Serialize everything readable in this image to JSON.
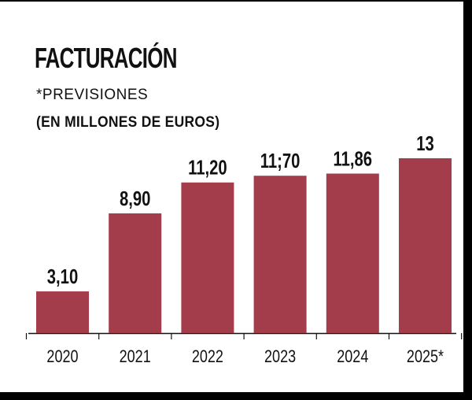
{
  "title": "FACTURACIÓN",
  "note": "*PREVISIONES",
  "unit": "(EN MILLONES DE EUROS)",
  "colors": {
    "bar": "#a33c4b",
    "text": "#111111",
    "background": "#ffffff",
    "frame": "#000000"
  },
  "chart_data": {
    "type": "bar",
    "title": "FACTURACIÓN",
    "subtitle": "(EN MILLONES DE EUROS)",
    "annotation": "*PREVISIONES",
    "categories": [
      "2020",
      "2021",
      "2022",
      "2023",
      "2024",
      "2025*"
    ],
    "values": [
      3.1,
      8.9,
      11.2,
      11.7,
      11.86,
      13
    ],
    "data_labels": [
      "3,10",
      "8,90",
      "11,20",
      "11;70",
      "11,86",
      "13"
    ],
    "xlabel": "",
    "ylabel": "",
    "ylim": [
      0,
      13
    ],
    "grid": false,
    "legend": "none"
  }
}
